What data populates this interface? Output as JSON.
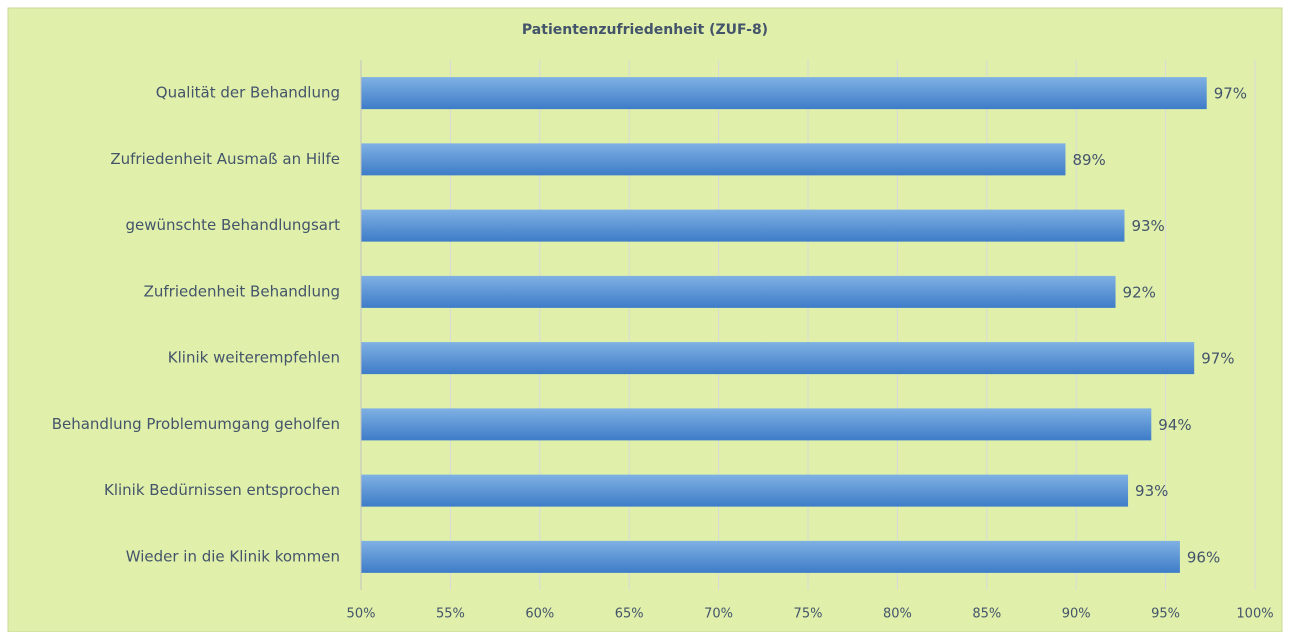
{
  "chart_data": {
    "type": "bar",
    "orientation": "horizontal",
    "title": "Patientenzufriedenheit (ZUF-8)",
    "categories": [
      "Qualität der Behandlung",
      "Zufriedenheit Ausmaß an Hilfe",
      "gewünschte Behandlungsart",
      "Zufriedenheit Behandlung",
      "Klinik weiterempfehlen",
      "Behandlung Problemumgang geholfen",
      "Klinik Bedürnissen entsprochen",
      "Wieder in die Klinik kommen"
    ],
    "values": [
      97.3,
      89.4,
      92.7,
      92.2,
      96.6,
      94.2,
      92.9,
      95.8
    ],
    "value_labels": [
      "97%",
      "89%",
      "93%",
      "92%",
      "97%",
      "94%",
      "93%",
      "96%"
    ],
    "color": "#5b9bd5",
    "xlim": [
      50,
      100
    ],
    "xticks": [
      {
        "value": 50,
        "label": "50%"
      },
      {
        "value": 55,
        "label": "55%"
      },
      {
        "value": 60,
        "label": "60%"
      },
      {
        "value": 65,
        "label": "65%"
      },
      {
        "value": 70,
        "label": "70%"
      },
      {
        "value": 75,
        "label": "75%"
      },
      {
        "value": 80,
        "label": "80%"
      },
      {
        "value": 85,
        "label": "85%"
      },
      {
        "value": 90,
        "label": "90%"
      },
      {
        "value": 95,
        "label": "95%"
      },
      {
        "value": 100,
        "label": "100%"
      }
    ],
    "grid": true
  }
}
